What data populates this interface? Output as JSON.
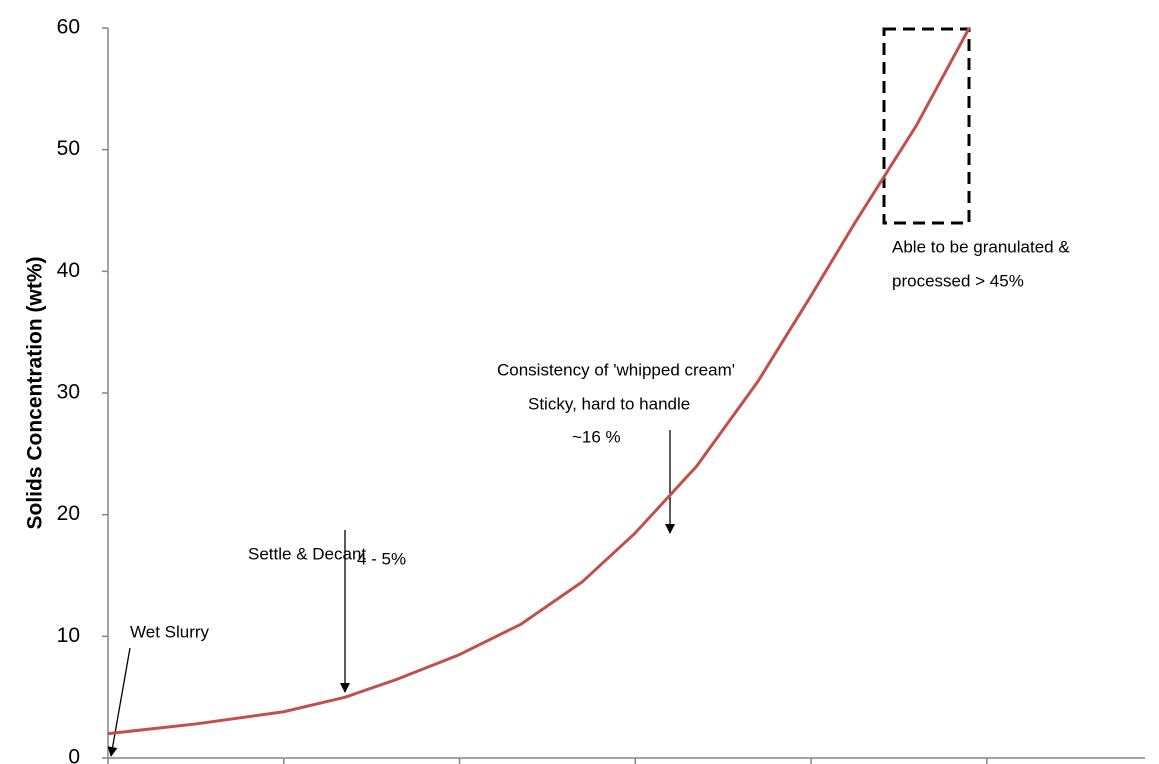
{
  "chart_data": {
    "type": "line",
    "y_label": "Solids Concentration (wt%)",
    "x": [
      0,
      0.5,
      1,
      1.35,
      1.65,
      2,
      2.35,
      2.7,
      3,
      3.35,
      3.7,
      4,
      4.25,
      4.6,
      4.9
    ],
    "series": [
      {
        "color": "#c0504d",
        "values": [
          2,
          2.8,
          3.8,
          5,
          6.5,
          8.5,
          11,
          14.5,
          18.5,
          24,
          31,
          38,
          44,
          52,
          60
        ]
      }
    ],
    "xlim": [
      0,
      5.9
    ],
    "xticks": [
      0,
      1,
      2,
      3,
      4,
      5
    ],
    "ylim": [
      0,
      60
    ],
    "yticks": [
      0,
      10,
      20,
      30,
      40,
      50,
      60
    ],
    "annotations": [
      "Wet Slurry",
      "Settle & Decant",
      "4 - 5%",
      "Consistency of 'whipped cream'",
      "Sticky, hard to handle",
      "~16 %",
      "Able to be granulated &",
      "processed > 45%"
    ]
  }
}
